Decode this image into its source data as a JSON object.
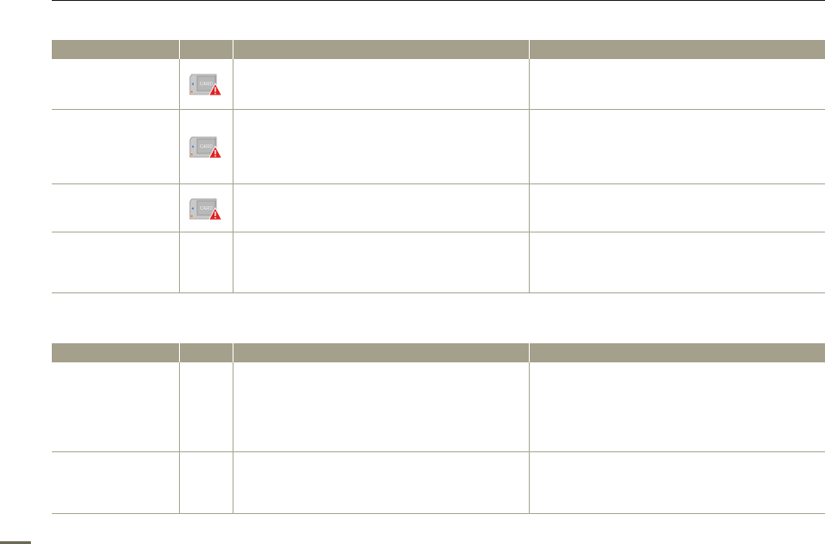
{
  "card_icon_label": "CARD",
  "colors": {
    "header": "#a4a08c",
    "rule": "#a9a796",
    "warning": "#e02020"
  },
  "table1": {
    "rows": [
      {
        "icon": "card-warning-icon"
      },
      {
        "icon": "card-warning-icon"
      },
      {
        "icon": "card-warning-icon"
      },
      {
        "icon": null
      }
    ]
  },
  "table2": {
    "rows": [
      {
        "icon": null
      },
      {
        "icon": null
      }
    ]
  }
}
